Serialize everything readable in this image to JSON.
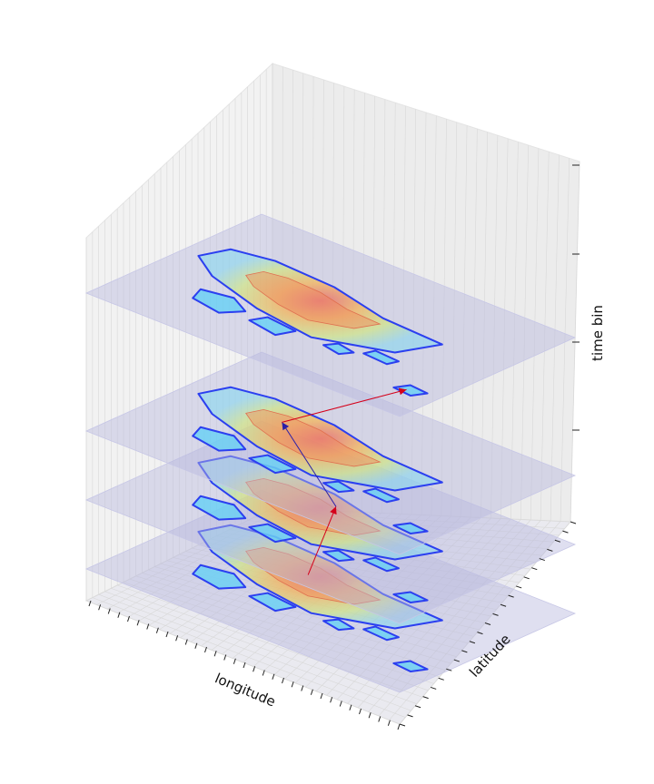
{
  "chart_data": {
    "type": "3d-stacked-density-contours",
    "title": "",
    "xlabel": "longitude",
    "ylabel": "latitude",
    "zlabel": "time bin",
    "grid": true,
    "colormap": "jet",
    "layers": [
      {
        "time_bin": 0,
        "shape": "full"
      },
      {
        "time_bin": 1,
        "shape": "full"
      },
      {
        "time_bin": 2,
        "shape": "full"
      },
      {
        "time_bin": 4,
        "shape": "full"
      }
    ],
    "trajectory_arrows": [
      {
        "from_time_bin": 0,
        "to_time_bin": 1,
        "color": "#d4001a"
      },
      {
        "from_time_bin": 1,
        "to_time_bin": 2,
        "color": "#2b1fa8"
      },
      {
        "from_time_bin": 2,
        "to_time_bin": 4,
        "color": "#d4001a"
      }
    ],
    "colors": {
      "plane": "#b8b8dd",
      "pane": "#f2f2f2",
      "grid": "#d8d8d8",
      "contour_outer": "#2b3ff0",
      "contour_mid": "#5fd0f5",
      "contour_hot": "#f08a5a"
    }
  }
}
